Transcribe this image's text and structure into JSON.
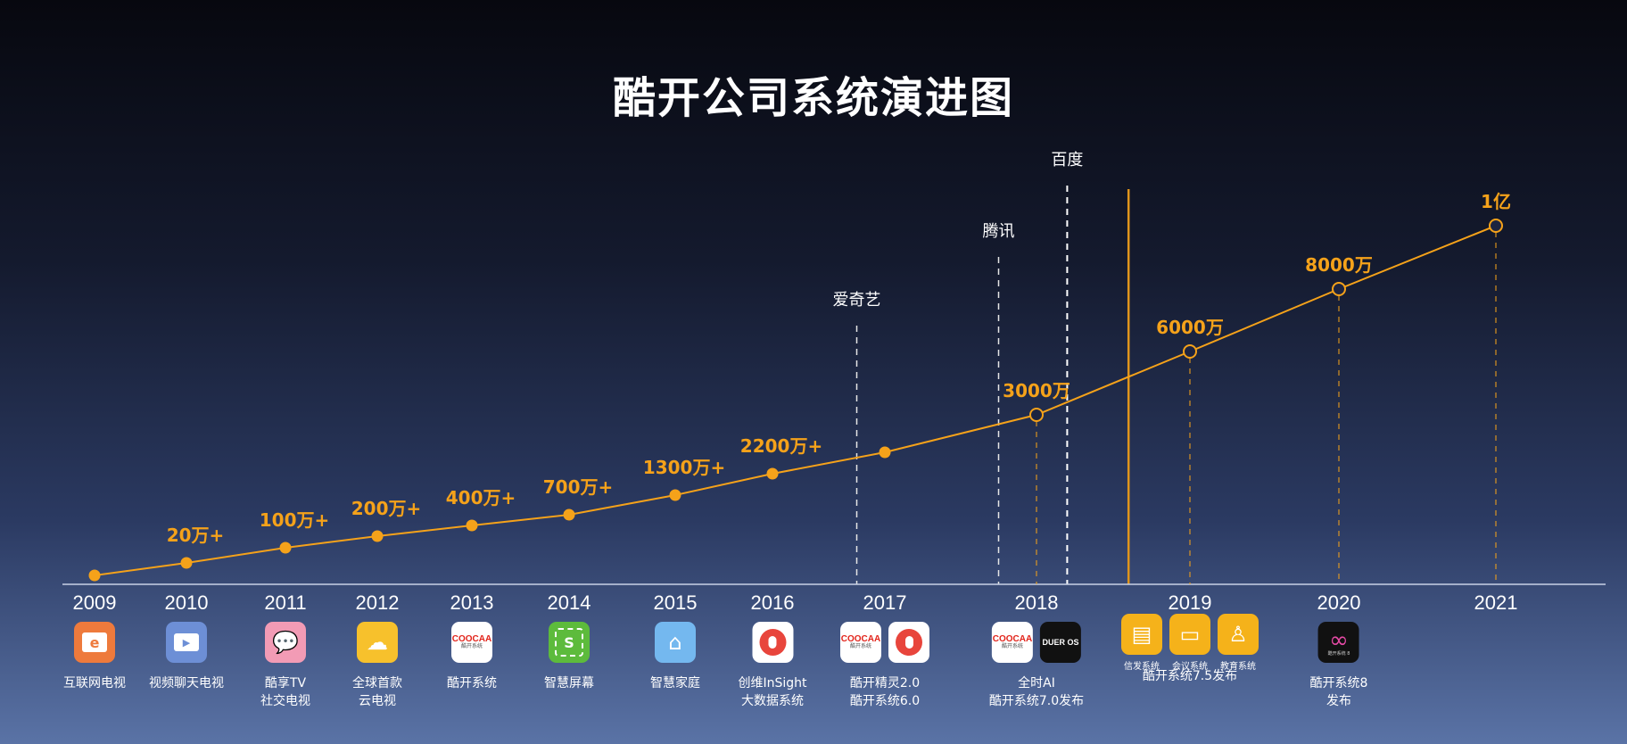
{
  "title": "酷开公司系统演进图",
  "chart_data": {
    "type": "line",
    "title": "酷开公司系统演进图",
    "x": [
      "2009",
      "2010",
      "2011",
      "2012",
      "2013",
      "2014",
      "2015",
      "2016",
      "2017",
      "2018",
      "2019",
      "2020",
      "2021"
    ],
    "points": [
      {
        "year": 2009.0,
        "value": 0,
        "label": "",
        "style": "filled"
      },
      {
        "year": 2010.0,
        "value": 20,
        "label": "20万+",
        "style": "filled"
      },
      {
        "year": 2011.0,
        "value": 100,
        "label": "100万+",
        "style": "filled"
      },
      {
        "year": 2012.0,
        "value": 200,
        "label": "200万+",
        "style": "filled"
      },
      {
        "year": 2013.0,
        "value": 400,
        "label": "400万+",
        "style": "filled"
      },
      {
        "year": 2014.0,
        "value": 700,
        "label": "700万+",
        "style": "filled"
      },
      {
        "year": 2015.0,
        "value": 1300,
        "label": "1300万+",
        "style": "filled"
      },
      {
        "year": 2016.0,
        "value": 2200,
        "label": "2200万+",
        "style": "filled"
      },
      {
        "year": 2017.0,
        "value": 2600,
        "label": "",
        "style": "filled"
      },
      {
        "year": 2018.0,
        "value": 3000,
        "label": "3000万",
        "style": "hollow"
      },
      {
        "year": 2019.0,
        "value": 6000,
        "label": "6000万",
        "style": "hollow"
      },
      {
        "year": 2020.0,
        "value": 8000,
        "label": "8000万",
        "style": "hollow"
      },
      {
        "year": 2021.0,
        "value": 10000,
        "label": "1亿",
        "style": "hollow"
      }
    ],
    "events": [
      {
        "name": "爱奇艺",
        "year": 2016.75
      },
      {
        "name": "腾讯",
        "year": 2017.75
      },
      {
        "name": "百度",
        "year": 2018.2
      }
    ],
    "divider_year": 2018.6,
    "grid": false
  },
  "products": [
    {
      "year": 2009.0,
      "caption": [
        "互联网电视"
      ],
      "icons": [
        {
          "name": "internet-tv-icon",
          "color": "#ee7a3c",
          "glyph": "e"
        }
      ]
    },
    {
      "year": 2010.0,
      "caption": [
        "视频聊天电视"
      ],
      "icons": [
        {
          "name": "video-chat-tv-icon",
          "color": "#6d8fd6",
          "glyph": "▶"
        }
      ]
    },
    {
      "year": 2011.0,
      "caption": [
        "酷享TV",
        "社交电视"
      ],
      "icons": [
        {
          "name": "social-tv-icon",
          "color": "#f29bb5",
          "glyph": "💬"
        }
      ]
    },
    {
      "year": 2012.0,
      "caption": [
        "全球首款",
        "云电视"
      ],
      "icons": [
        {
          "name": "cloud-tv-icon",
          "color": "#f7c12c",
          "glyph": "☁"
        }
      ]
    },
    {
      "year": 2013.0,
      "caption": [
        "酷开系统"
      ],
      "icons": [
        {
          "name": "coocaa-system-icon",
          "color": "#ffffff",
          "glyph": "coocaa"
        }
      ]
    },
    {
      "year": 2014.0,
      "caption": [
        "智慧屏幕"
      ],
      "icons": [
        {
          "name": "smart-screen-icon",
          "color": "#5dbb3c",
          "glyph": "S"
        }
      ]
    },
    {
      "year": 2015.0,
      "caption": [
        "智慧家庭"
      ],
      "icons": [
        {
          "name": "smart-home-icon",
          "color": "#74b8ef",
          "glyph": "⌂"
        }
      ]
    },
    {
      "year": 2016.0,
      "caption": [
        "创维InSight",
        "大数据系统"
      ],
      "icons": [
        {
          "name": "insight-mic-icon",
          "color": "#ffffff",
          "glyph": "mic"
        }
      ]
    },
    {
      "year": 2017.0,
      "caption": [
        "酷开精灵2.0",
        "酷开系统6.0"
      ],
      "icons": [
        {
          "name": "coocaa-system-icon",
          "color": "#ffffff",
          "glyph": "coocaa"
        },
        {
          "name": "assistant-mic-icon",
          "color": "#ffffff",
          "glyph": "mic"
        }
      ]
    },
    {
      "year": 2018.0,
      "caption": [
        "全时AI",
        "酷开系统7.0发布"
      ],
      "icons": [
        {
          "name": "coocaa-system-icon",
          "color": "#ffffff",
          "glyph": "coocaa"
        },
        {
          "name": "duer-os-icon",
          "color": "#111111",
          "glyph": "DUER OS"
        }
      ]
    },
    {
      "year": 2019.0,
      "caption": [
        "酷开系统7.5发布"
      ],
      "mini_captions": [
        "信发系统",
        "会议系统",
        "教育系统"
      ],
      "icons": [
        {
          "name": "signage-system-icon",
          "color": "#f5b21a",
          "glyph": "▤"
        },
        {
          "name": "meeting-system-icon",
          "color": "#f5b21a",
          "glyph": "▭"
        },
        {
          "name": "education-system-icon",
          "color": "#f5b21a",
          "glyph": "♙"
        }
      ]
    },
    {
      "year": 2020.0,
      "caption": [
        "酷开系统8",
        "发布"
      ],
      "icons": [
        {
          "name": "coocaa-system-8-icon",
          "color": "#111111",
          "glyph": "∞"
        }
      ]
    }
  ],
  "colors": {
    "accent": "#f5a21a",
    "axis": "#c9d2e6",
    "event_line": "#e6e6e6"
  }
}
